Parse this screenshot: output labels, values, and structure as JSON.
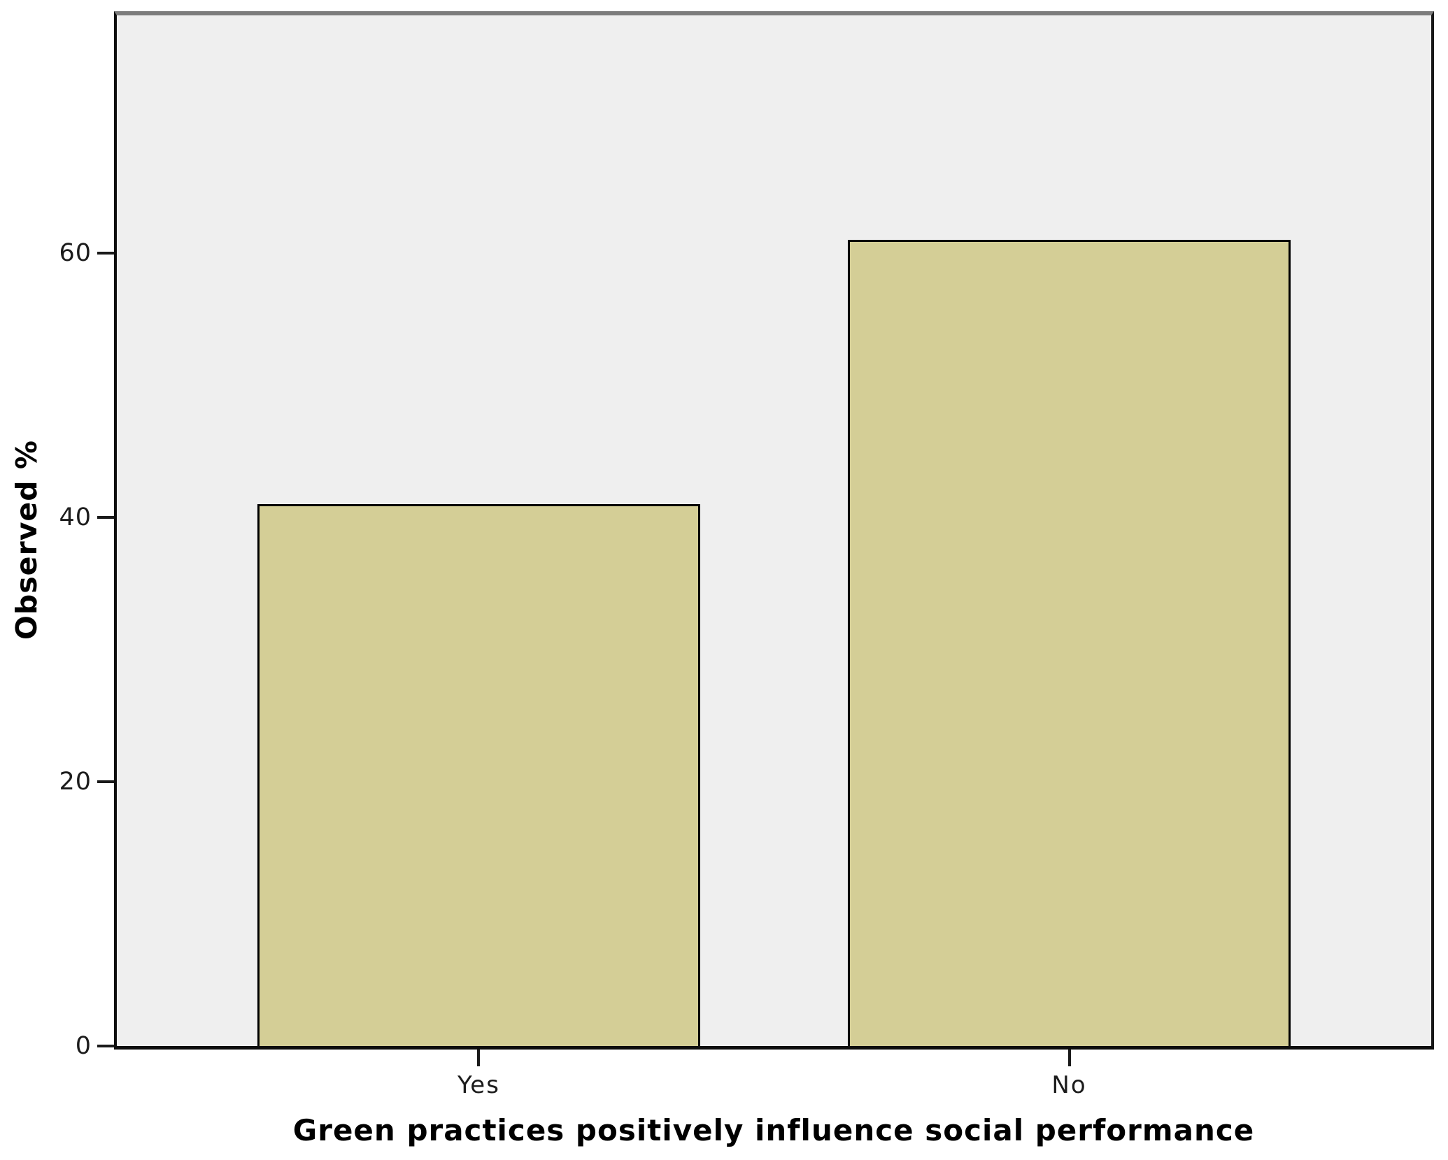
{
  "chart_data": {
    "type": "bar",
    "categories": [
      "Yes",
      "No"
    ],
    "values": [
      41,
      61
    ],
    "title": "",
    "xlabel": "Green practices positively influence social performance",
    "ylabel": "Observed %",
    "ylim": [
      0,
      78
    ],
    "yticks": [
      0,
      20,
      40,
      60
    ],
    "grid": false,
    "legend": "none",
    "bar_color": "#d4ce96",
    "bar_border_color": "#000000",
    "plot_bg_color": "#efefef",
    "layout_hints": {
      "left_margin_frac": 0.1072,
      "bar_width_frac": 0.3364,
      "gap_frac": 0.1128
    }
  }
}
